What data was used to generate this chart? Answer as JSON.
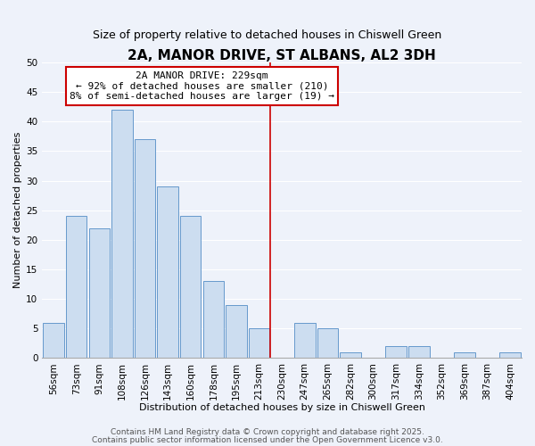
{
  "title": "2A, MANOR DRIVE, ST ALBANS, AL2 3DH",
  "subtitle": "Size of property relative to detached houses in Chiswell Green",
  "xlabel": "Distribution of detached houses by size in Chiswell Green",
  "ylabel": "Number of detached properties",
  "bin_labels": [
    "56sqm",
    "73sqm",
    "91sqm",
    "108sqm",
    "126sqm",
    "143sqm",
    "160sqm",
    "178sqm",
    "195sqm",
    "213sqm",
    "230sqm",
    "247sqm",
    "265sqm",
    "282sqm",
    "300sqm",
    "317sqm",
    "334sqm",
    "352sqm",
    "369sqm",
    "387sqm",
    "404sqm"
  ],
  "bar_values": [
    6,
    24,
    22,
    42,
    37,
    29,
    24,
    13,
    9,
    5,
    0,
    6,
    5,
    1,
    0,
    2,
    2,
    0,
    1,
    0,
    1
  ],
  "bar_color": "#ccddf0",
  "bar_edge_color": "#6699cc",
  "vline_x_index": 10,
  "vline_color": "#cc0000",
  "ylim": [
    0,
    50
  ],
  "yticks": [
    0,
    5,
    10,
    15,
    20,
    25,
    30,
    35,
    40,
    45,
    50
  ],
  "annotation_line1": "2A MANOR DRIVE: 229sqm",
  "annotation_line2": "← 92% of detached houses are smaller (210)",
  "annotation_line3": "8% of semi-detached houses are larger (19) →",
  "annotation_box_edge": "#cc0000",
  "footer1": "Contains HM Land Registry data © Crown copyright and database right 2025.",
  "footer2": "Contains public sector information licensed under the Open Government Licence v3.0.",
  "background_color": "#eef2fa",
  "grid_color": "#ffffff",
  "title_fontsize": 11,
  "subtitle_fontsize": 9,
  "xlabel_fontsize": 8,
  "ylabel_fontsize": 8,
  "tick_fontsize": 7.5,
  "annotation_fontsize": 8,
  "footer_fontsize": 6.5
}
